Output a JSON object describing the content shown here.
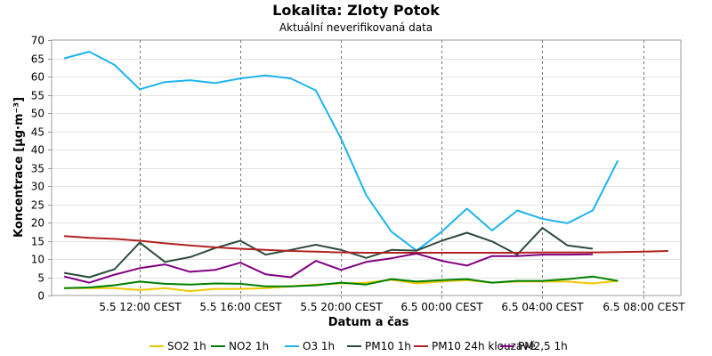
{
  "chart_data": {
    "type": "line",
    "title": "Lokalita: Zloty Potok",
    "subtitle": "Aktuální neverifikovaná data",
    "xlabel": "Datum a čas",
    "ylabel": "Koncentrace [µg·m⁻³]",
    "ylim": [
      0,
      70
    ],
    "yticks": [
      0,
      5,
      10,
      15,
      20,
      25,
      30,
      35,
      40,
      45,
      50,
      55,
      60,
      65,
      70
    ],
    "x_hours": [
      8,
      9,
      10,
      11,
      12,
      13,
      14,
      15,
      16,
      17,
      18,
      19,
      20,
      21,
      22,
      23,
      24,
      25,
      26,
      27,
      28,
      29,
      30,
      31,
      32
    ],
    "xlim_hours": [
      7.5,
      32.5
    ],
    "xticks": [
      {
        "hour": 11,
        "label": "5.5 12:00 CEST"
      },
      {
        "hour": 15,
        "label": "5.5 16:00 CEST"
      },
      {
        "hour": 19,
        "label": "5.5 20:00 CEST"
      },
      {
        "hour": 23,
        "label": "6.5 00:00 CEST"
      },
      {
        "hour": 27,
        "label": "6.5 04:00 CEST"
      },
      {
        "hour": 31,
        "label": "6.5 08:00 CEST"
      }
    ],
    "grid": true,
    "legend_position": "bottom",
    "series": [
      {
        "name": "SO2 1h",
        "color": "#f0c800",
        "values": [
          2.0,
          2.0,
          2.0,
          1.5,
          2.0,
          1.2,
          1.8,
          1.8,
          2.0,
          2.5,
          3.0,
          3.3,
          3.5,
          4.3,
          3.3,
          3.8,
          4.2,
          3.5,
          3.8,
          3.8,
          3.8,
          3.3,
          4.0,
          null,
          null
        ]
      },
      {
        "name": "NO2 1h",
        "color": "#008000",
        "values": [
          2.0,
          2.2,
          2.8,
          3.8,
          3.2,
          3.0,
          3.3,
          3.2,
          2.5,
          2.5,
          2.8,
          3.5,
          3.0,
          4.5,
          3.8,
          4.2,
          4.5,
          3.5,
          4.0,
          4.0,
          4.5,
          5.2,
          4.0,
          null,
          null
        ]
      },
      {
        "name": "O3 1h",
        "color": "#1eb4f0",
        "values": [
          65.0,
          66.8,
          63.2,
          56.5,
          58.5,
          59.0,
          58.2,
          59.5,
          60.3,
          59.5,
          56.2,
          43.0,
          27.5,
          17.5,
          12.3,
          17.5,
          23.8,
          17.8,
          23.3,
          21.0,
          19.8,
          23.3,
          37.0,
          null,
          null
        ]
      },
      {
        "name": "PM10 1h",
        "color": "#2e4a3e",
        "values": [
          6.2,
          5.0,
          7.2,
          14.5,
          9.2,
          10.5,
          13.0,
          15.0,
          11.2,
          12.5,
          13.9,
          12.5,
          10.3,
          12.5,
          12.3,
          15.0,
          17.2,
          14.8,
          11.2,
          18.5,
          13.7,
          12.8,
          null,
          null,
          null
        ]
      },
      {
        "name": "PM10 24h klouzavě",
        "color": "#b22222",
        "values": [
          16.3,
          15.8,
          15.5,
          15.0,
          14.3,
          13.7,
          13.2,
          12.8,
          12.5,
          12.2,
          12.0,
          11.8,
          11.7,
          11.7,
          11.7,
          11.7,
          11.7,
          11.7,
          11.7,
          11.8,
          11.8,
          11.8,
          11.9,
          12.0,
          12.2
        ]
      },
      {
        "name": "PM2,5 1h",
        "color": "#800080",
        "values": [
          5.2,
          3.5,
          5.7,
          7.5,
          8.5,
          6.5,
          7.0,
          9.0,
          5.8,
          5.0,
          9.5,
          7.0,
          9.2,
          10.2,
          11.5,
          9.5,
          8.2,
          10.8,
          10.8,
          11.2,
          11.2,
          11.3,
          null,
          null,
          null
        ]
      }
    ]
  }
}
